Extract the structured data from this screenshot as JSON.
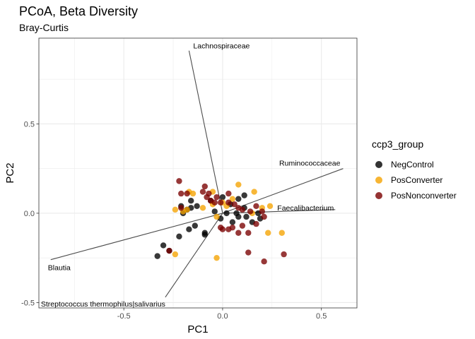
{
  "chart_data": {
    "type": "scatter",
    "title": "PCoA, Beta Diversity",
    "subtitle": "Bray-Curtis",
    "xlabel": "PC1",
    "ylabel": "PC2",
    "xlim": [
      -0.93,
      0.68
    ],
    "ylim": [
      -0.53,
      0.98
    ],
    "x_ticks": [
      -0.5,
      0.0,
      0.5
    ],
    "x_tick_labels": [
      "-0.5",
      "0.0",
      "0.5"
    ],
    "y_ticks": [
      -0.5,
      0.0,
      0.5
    ],
    "y_tick_labels": [
      "-0.5",
      "0.0",
      "0.5"
    ],
    "grid": true,
    "legend": {
      "title": "ccp3_group",
      "position": "right",
      "entries": [
        {
          "name": "NegControl",
          "color": "#000000"
        },
        {
          "name": "PosConverter",
          "color": "#f5a300"
        },
        {
          "name": "PosNonconverter",
          "color": "#7a0000"
        }
      ]
    },
    "series": [
      {
        "name": "NegControl",
        "color": "#000000",
        "points": [
          [
            -0.33,
            -0.24
          ],
          [
            -0.3,
            -0.18
          ],
          [
            -0.27,
            -0.21
          ],
          [
            -0.17,
            -0.09
          ],
          [
            -0.14,
            -0.07
          ],
          [
            -0.09,
            -0.11
          ],
          [
            -0.13,
            0.04
          ],
          [
            -0.16,
            0.07
          ],
          [
            -0.22,
            -0.13
          ],
          [
            -0.2,
            0.0
          ],
          [
            -0.21,
            0.04
          ],
          [
            -0.18,
            0.02
          ],
          [
            -0.16,
            0.03
          ],
          [
            -0.04,
            0.01
          ],
          [
            -0.01,
            -0.03
          ],
          [
            0.0,
            0.09
          ],
          [
            0.04,
            0.05
          ],
          [
            0.08,
            0.08
          ],
          [
            0.11,
            0.1
          ],
          [
            0.11,
            0.03
          ],
          [
            0.07,
            0.0
          ],
          [
            0.12,
            -0.02
          ],
          [
            0.15,
            -0.05
          ],
          [
            0.19,
            -0.03
          ],
          [
            0.18,
            0.0
          ],
          [
            -0.06,
            0.07
          ],
          [
            0.02,
            0.0
          ],
          [
            0.05,
            -0.05
          ],
          [
            0.08,
            -0.02
          ],
          [
            -0.09,
            -0.12
          ]
        ]
      },
      {
        "name": "PosConverter",
        "color": "#f5a300",
        "points": [
          [
            -0.24,
            0.02
          ],
          [
            -0.2,
            0.01
          ],
          [
            -0.18,
            0.02
          ],
          [
            -0.24,
            -0.23
          ],
          [
            -0.17,
            0.12
          ],
          [
            -0.15,
            0.11
          ],
          [
            -0.1,
            0.03
          ],
          [
            -0.05,
            0.05
          ],
          [
            -0.03,
            -0.02
          ],
          [
            0.02,
            0.04
          ],
          [
            0.05,
            0.08
          ],
          [
            0.08,
            0.16
          ],
          [
            0.16,
            0.12
          ],
          [
            0.2,
            0.03
          ],
          [
            0.24,
            0.04
          ],
          [
            0.23,
            -0.11
          ],
          [
            0.3,
            -0.11
          ],
          [
            -0.03,
            -0.25
          ],
          [
            0.0,
            0.06
          ],
          [
            -0.05,
            0.12
          ],
          [
            0.15,
            0.0
          ]
        ]
      },
      {
        "name": "PosNonconverter",
        "color": "#7a0000",
        "points": [
          [
            -0.22,
            0.18
          ],
          [
            -0.21,
            0.11
          ],
          [
            -0.18,
            0.11
          ],
          [
            -0.21,
            0.03
          ],
          [
            -0.09,
            0.15
          ],
          [
            -0.1,
            0.12
          ],
          [
            -0.07,
            0.11
          ],
          [
            -0.08,
            0.09
          ],
          [
            -0.06,
            0.07
          ],
          [
            -0.03,
            0.09
          ],
          [
            -0.04,
            0.06
          ],
          [
            0.03,
            0.11
          ],
          [
            0.03,
            0.06
          ],
          [
            0.06,
            0.05
          ],
          [
            0.08,
            0.03
          ],
          [
            0.1,
            0.02
          ],
          [
            0.14,
            0.01
          ],
          [
            0.17,
            0.04
          ],
          [
            0.2,
            0.01
          ],
          [
            0.21,
            -0.02
          ],
          [
            0.17,
            -0.06
          ],
          [
            0.1,
            -0.07
          ],
          [
            0.05,
            -0.08
          ],
          [
            0.0,
            -0.09
          ],
          [
            -0.01,
            -0.08
          ],
          [
            0.08,
            -0.11
          ],
          [
            0.13,
            -0.11
          ],
          [
            0.13,
            -0.22
          ],
          [
            0.21,
            -0.27
          ],
          [
            0.31,
            -0.23
          ],
          [
            -0.27,
            -0.21
          ],
          [
            0.03,
            -0.09
          ],
          [
            -0.01,
            0.06
          ]
        ]
      }
    ],
    "vectors": [
      {
        "label": "Lachnospiraceae",
        "x": -0.17,
        "y": 0.91
      },
      {
        "label": "Ruminococcaceae",
        "x": 0.61,
        "y": 0.25
      },
      {
        "label": "Faecalibacterium",
        "x": 0.57,
        "y": 0.02
      },
      {
        "label": "Blautia",
        "x": -0.87,
        "y": -0.26
      },
      {
        "label": "Streptococcus thermophilus|salivarius",
        "x": -0.29,
        "y": -0.47
      }
    ]
  }
}
